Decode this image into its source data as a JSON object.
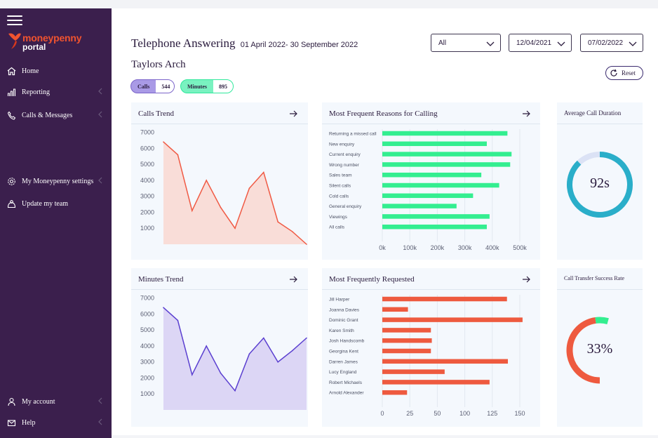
{
  "sidebar": {
    "logo": {
      "line1": "moneypenny",
      "line2": "portal"
    },
    "items": [
      {
        "label": "Home",
        "icon": "home-icon"
      },
      {
        "label": "Reporting",
        "icon": "chart-icon"
      },
      {
        "label": "Calls & Messages",
        "icon": "phone-icon"
      },
      {
        "label": "My Moneypenny settings",
        "icon": "gear-icon"
      },
      {
        "label": "Update my team",
        "icon": "team-icon"
      },
      {
        "label": "My account",
        "icon": "user-icon"
      },
      {
        "label": "Help",
        "icon": "mail-icon"
      }
    ]
  },
  "header": {
    "title": "Telephone Answering",
    "date_range": "01 April 2022- 30 September 2022",
    "subtitle": "Taylors Arch"
  },
  "filters": {
    "type": "All",
    "date_from": "12/04/2021",
    "date_to": "07/02/2022",
    "reset_label": "Reset"
  },
  "badges": {
    "calls_label": "Calls",
    "calls_value": "544",
    "minutes_label": "Minutes",
    "minutes_value": "895"
  },
  "cards": {
    "calls_trend": "Calls Trend",
    "reasons": "Most Frequent Reasons for Calling",
    "avg_duration": "Average Call Duration",
    "avg_duration_value": "92s",
    "minutes_trend": "Minutes Trend",
    "requested": "Most Frequently Requested",
    "transfer_rate": "Call Transfer Success Rate",
    "transfer_rate_value": "33%"
  },
  "colors": {
    "sidebar": "#3b1f4d",
    "calls": "#f05a44",
    "minutes": "#5a3fd0",
    "reasons_bar": "#33ee90",
    "requested_bar": "#ee5a3f",
    "gauge_blue": "#2aaec9",
    "gauge_green": "#33ee90"
  },
  "chart_data": [
    {
      "type": "area",
      "ylabel_ticks": [
        7000,
        6000,
        5000,
        4000,
        3000,
        2000,
        1000
      ],
      "ylim": [
        0,
        7200
      ],
      "values": [
        6400,
        5600,
        2100,
        4000,
        2300,
        1000,
        3500,
        4500,
        1400,
        800,
        0
      ],
      "grid": false
    },
    {
      "type": "bar",
      "orientation": "horizontal",
      "categories": [
        "Returning a missed call",
        "New enquiry",
        "Current enquiry",
        "Wrong number",
        "Sales team",
        "Silent calls",
        "Cold calls",
        "General enquiry",
        "Viewings",
        "All calls"
      ],
      "values": [
        455000,
        380000,
        470000,
        465000,
        360000,
        425000,
        330000,
        270000,
        390000,
        380000
      ],
      "xticks": [
        "0k",
        "100k",
        "200k",
        "300k",
        "400k",
        "500k"
      ],
      "xlim": [
        0,
        500000
      ],
      "grid": true
    },
    {
      "type": "area",
      "ylabel_ticks": [
        7000,
        6000,
        5000,
        4000,
        3000,
        2000,
        1000
      ],
      "ylim": [
        0,
        7200
      ],
      "values": [
        6400,
        5600,
        2200,
        4000,
        2300,
        1200,
        3500,
        4500,
        3000,
        3700,
        4500
      ],
      "grid": false
    },
    {
      "type": "bar",
      "orientation": "horizontal",
      "categories": [
        "Jill Harper",
        "Joanna Davies",
        "Dominic Grant",
        "Karen Smith",
        "Josh Handscomb",
        "Georgina Kent",
        "Darren James",
        "Lucy England",
        "Robert Michaels",
        "Arnold Alexander"
      ],
      "values": [
        136,
        28,
        153,
        53,
        54,
        53,
        137,
        68,
        117,
        27
      ],
      "xticks": [
        "0",
        "25",
        "50",
        "100",
        "125",
        "150"
      ],
      "xlim": [
        0,
        150
      ],
      "grid": true
    },
    {
      "type": "pie",
      "value": 92,
      "label": "92s",
      "fraction": 0.88
    },
    {
      "type": "pie",
      "value": 33,
      "label": "33%",
      "fraction": 0.33
    }
  ]
}
